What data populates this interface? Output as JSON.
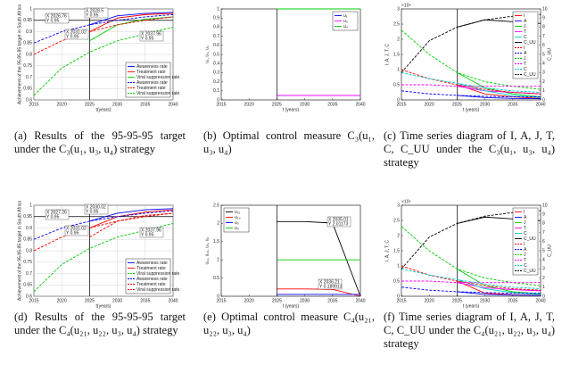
{
  "chart_data": [
    {
      "type": "line",
      "caption": "(a) Results of the 95-95-95 target under the C₃(u₁, u₃, u₄) strategy",
      "xlabel": "t(years)",
      "ylabel": "Achievement of the 95-95-95 target in South Africa",
      "x": [
        2015,
        2020,
        2025,
        2030,
        2035,
        2040
      ],
      "xlim": [
        2015,
        2040
      ],
      "xticks": [
        2015,
        2020,
        2025,
        2030,
        2035,
        2040
      ],
      "ylim": [
        0.6,
        1
      ],
      "yticks": [
        0.6,
        0.65,
        0.7,
        0.75,
        0.8,
        0.85,
        0.9,
        0.95,
        1
      ],
      "grid": true,
      "hline": 0.95,
      "vline": 2025,
      "legend": "lower right",
      "annotations": [
        [
          "X 2026.76",
          "Y 0.95"
        ],
        [
          "X 2028.5",
          "Y 0.95"
        ],
        [
          "X 2031.02",
          "Y 0.95"
        ],
        [
          "X 2037.96",
          "Y 0.95"
        ]
      ],
      "series": [
        {
          "name": "Awareness rate",
          "color": "#0000ff",
          "dashed": false,
          "values": [
            null,
            null,
            0.93,
            0.97,
            0.98,
            0.985
          ]
        },
        {
          "name": "Treatment rate",
          "color": "#ff0000",
          "dashed": false,
          "values": [
            null,
            null,
            0.9,
            0.96,
            0.975,
            0.98
          ]
        },
        {
          "name": "Viral suppression rate",
          "color": "#00cc00",
          "dashed": false,
          "values": [
            null,
            null,
            0.86,
            0.93,
            0.955,
            0.965
          ]
        },
        {
          "name": "Awareness rate",
          "color": "#0000ff",
          "dashed": true,
          "values": [
            0.85,
            0.9,
            0.93,
            0.95,
            0.965,
            0.975
          ]
        },
        {
          "name": "Treatment rate",
          "color": "#ff0000",
          "dashed": true,
          "values": [
            0.8,
            0.86,
            0.9,
            0.93,
            0.95,
            0.965
          ]
        },
        {
          "name": "Viral suppression rate",
          "color": "#00cc00",
          "dashed": true,
          "values": [
            0.62,
            0.74,
            0.81,
            0.86,
            0.89,
            0.92
          ]
        }
      ]
    },
    {
      "type": "line",
      "caption": "(b) Optimal control measure C₃(u₁, u₃, u₄)",
      "xlabel": "t (years)",
      "ylabel": "u₁, u₃, u₄",
      "x": [
        2015,
        2020,
        2025,
        2030,
        2035,
        2040
      ],
      "xlim": [
        2015,
        2040
      ],
      "xticks": [
        2015,
        2020,
        2025,
        2030,
        2035,
        2040
      ],
      "ylim": [
        0,
        1
      ],
      "yticks": [
        0,
        0.1,
        0.2,
        0.3,
        0.4,
        0.5,
        0.6,
        0.7,
        0.8,
        0.9,
        1
      ],
      "grid": false,
      "vline": 2025,
      "legend": "upper right",
      "annotations": [],
      "series": [
        {
          "name": "u₁",
          "color": "#0000ff",
          "dashed": false,
          "values": [
            null,
            null,
            0.05,
            0.05,
            0.05,
            0.05
          ]
        },
        {
          "name": "u₃",
          "color": "#ff00ff",
          "dashed": false,
          "values": [
            null,
            null,
            0.05,
            0.05,
            0.05,
            0.05
          ]
        },
        {
          "name": "u₄",
          "color": "#00cc00",
          "dashed": false,
          "values": [
            null,
            null,
            1,
            1,
            1,
            1
          ]
        }
      ]
    },
    {
      "type": "line",
      "caption": "(c) Time series diagram of I, A, J, T, C, C_UU under the C₃(u₁, u₃, u₄) strategy",
      "xlabel": "t (years)",
      "ylabel": "I, A, J, T, C",
      "y2label": "C_UU",
      "yscale_label": "×10⁶",
      "x": [
        2015,
        2020,
        2025,
        2030,
        2035,
        2040
      ],
      "xlim": [
        2015,
        2040
      ],
      "xticks": [
        2015,
        2020,
        2025,
        2030,
        2035,
        2040
      ],
      "ylim": [
        0,
        3
      ],
      "yticks": [
        0,
        0.5,
        1,
        1.5,
        2,
        2.5,
        3
      ],
      "y2lim": [
        0,
        10
      ],
      "y2ticks": [
        0,
        1,
        2,
        3,
        4,
        5,
        6,
        7,
        8,
        9,
        10
      ],
      "grid": false,
      "vline": 2025,
      "legend": "upper right",
      "annotations": [],
      "series": [
        {
          "name": "I",
          "color": "#ff0000",
          "dashed": false,
          "values": [
            null,
            null,
            0.5,
            0.2,
            0.1,
            0.05
          ]
        },
        {
          "name": "A",
          "color": "#0000ff",
          "dashed": false,
          "values": [
            null,
            null,
            0.15,
            0.08,
            0.05,
            0.04
          ]
        },
        {
          "name": "J",
          "color": "#00cc00",
          "dashed": false,
          "values": [
            null,
            null,
            0.9,
            0.4,
            0.2,
            0.1
          ]
        },
        {
          "name": "T",
          "color": "#ff00ff",
          "dashed": false,
          "values": [
            null,
            null,
            0.45,
            0.3,
            0.25,
            0.2
          ]
        },
        {
          "name": "C",
          "color": "#00cccc",
          "dashed": false,
          "values": [
            null,
            null,
            0.55,
            0.3,
            0.15,
            0.08
          ]
        },
        {
          "name": "C_UU",
          "color": "#000000",
          "dashed": false,
          "axis": "y2",
          "values": [
            null,
            null,
            8,
            8.8,
            8.6,
            8.4
          ]
        },
        {
          "name": "I",
          "color": "#ff0000",
          "dashed": true,
          "values": [
            1,
            0.7,
            0.5,
            0.35,
            0.25,
            0.2
          ]
        },
        {
          "name": "A",
          "color": "#0000ff",
          "dashed": true,
          "values": [
            0.3,
            0.2,
            0.15,
            0.12,
            0.1,
            0.1
          ]
        },
        {
          "name": "J",
          "color": "#00cc00",
          "dashed": true,
          "values": [
            2.3,
            1.5,
            0.9,
            0.6,
            0.45,
            0.35
          ]
        },
        {
          "name": "T",
          "color": "#ff00ff",
          "dashed": true,
          "values": [
            0.5,
            0.5,
            0.45,
            0.45,
            0.45,
            0.45
          ]
        },
        {
          "name": "C",
          "color": "#00cccc",
          "dashed": true,
          "values": [
            0.9,
            0.7,
            0.55,
            0.4,
            0.3,
            0.25
          ]
        },
        {
          "name": "C_UU",
          "color": "#000000",
          "dashed": true,
          "axis": "y2",
          "values": [
            3,
            6.5,
            8,
            8.8,
            9.2,
            9.4
          ]
        }
      ]
    },
    {
      "type": "line",
      "caption": "(d) Results of the 95-95-95 target under the C₄(u₂₁, u₂₂, u₃, u₄) strategy",
      "xlabel": "t(years)",
      "ylabel": "Achievement of the 95-95-95 target in South Africa",
      "x": [
        2015,
        2020,
        2025,
        2030,
        2035,
        2040
      ],
      "xlim": [
        2015,
        2040
      ],
      "xticks": [
        2015,
        2020,
        2025,
        2030,
        2035,
        2040
      ],
      "ylim": [
        0.6,
        1
      ],
      "yticks": [
        0.6,
        0.65,
        0.7,
        0.75,
        0.8,
        0.85,
        0.9,
        0.95,
        1
      ],
      "grid": true,
      "hline": 0.95,
      "vline": 2025,
      "legend": "lower right",
      "annotations": [
        [
          "X 2027.26",
          "Y 0.95"
        ],
        [
          "X 2030.02",
          "Y 0.95"
        ],
        [
          "X 2031.02",
          "Y 0.95"
        ],
        [
          "X 2037.96",
          "Y 0.95"
        ]
      ],
      "series": [
        {
          "name": "Awareness rate",
          "color": "#0000ff",
          "dashed": false,
          "values": [
            null,
            null,
            0.93,
            0.965,
            0.98,
            0.985
          ]
        },
        {
          "name": "Treatment rate",
          "color": "#ff0000",
          "dashed": false,
          "values": [
            null,
            null,
            0.9,
            0.95,
            0.97,
            0.98
          ]
        },
        {
          "name": "Viral suppression rate",
          "color": "#00cc00",
          "dashed": true,
          "values": [
            0.62,
            0.74,
            0.81,
            0.86,
            0.89,
            0.92
          ]
        },
        {
          "name": "Awareness rate",
          "color": "#0000ff",
          "dashed": true,
          "values": [
            0.85,
            0.9,
            0.93,
            0.95,
            0.965,
            0.975
          ]
        },
        {
          "name": "Treatment rate",
          "color": "#ff0000",
          "dashed": true,
          "values": [
            0.8,
            0.86,
            0.9,
            0.93,
            0.95,
            0.965
          ]
        },
        {
          "name": "Viral suppression rate",
          "color": "#ff0000",
          "dashed": true,
          "values": [
            null,
            null,
            0.86,
            0.93,
            0.955,
            0.965
          ]
        }
      ]
    },
    {
      "type": "line",
      "caption": "(e) Optimal control measure C₄(u₂₁, u₂₂, u₃, u₄)",
      "xlabel": "t (years)",
      "ylabel": "u₂₁, u₂₂, u₃, u₄",
      "x": [
        2015,
        2020,
        2025,
        2030,
        2035,
        2040
      ],
      "xlim": [
        2015,
        2040
      ],
      "xticks": [
        2015,
        2020,
        2025,
        2030,
        2035,
        2040
      ],
      "ylim": [
        0,
        2.5
      ],
      "yticks": [
        0,
        0.5,
        1,
        1.5,
        2,
        2.5
      ],
      "grid": false,
      "vline": 2025,
      "legend": "upper left",
      "annotations": [
        [
          "X 2035.01",
          "Y 2.01173"
        ],
        [
          "X 2036.21",
          "Y 0.189913"
        ]
      ],
      "series": [
        {
          "name": "u₂₁",
          "color": "#000000",
          "dashed": false,
          "values": [
            null,
            null,
            2.05,
            2.05,
            2.01,
            0
          ]
        },
        {
          "name": "u₂₂",
          "color": "#ff0000",
          "dashed": false,
          "values": [
            null,
            null,
            0.2,
            0.2,
            0.19,
            0
          ]
        },
        {
          "name": "u₃",
          "color": "#0000ff",
          "dashed": false,
          "values": [
            null,
            null,
            0.05,
            0.05,
            0.05,
            0.05
          ]
        },
        {
          "name": "u₄",
          "color": "#00cc00",
          "dashed": false,
          "values": [
            null,
            null,
            1,
            1,
            1,
            1
          ]
        }
      ]
    },
    {
      "type": "line",
      "caption": "(f) Time series diagram of I, A, J, T, C, C_UU under the C₄(u₂₁, u₂₂, u₃, u₄) strategy",
      "xlabel": "t (years)",
      "ylabel": "I, A, J, T, C",
      "y2label": "C_UU",
      "yscale_label": "×10⁶",
      "x": [
        2015,
        2020,
        2025,
        2030,
        2035,
        2040
      ],
      "xlim": [
        2015,
        2040
      ],
      "xticks": [
        2015,
        2020,
        2025,
        2030,
        2035,
        2040
      ],
      "ylim": [
        0,
        3
      ],
      "yticks": [
        0,
        0.5,
        1,
        1.5,
        2,
        2.5,
        3
      ],
      "y2lim": [
        0,
        10
      ],
      "y2ticks": [
        0,
        1,
        2,
        3,
        4,
        5,
        6,
        7,
        8,
        9,
        10
      ],
      "grid": false,
      "vline": 2025,
      "legend": "upper right",
      "annotations": [],
      "series": [
        {
          "name": "I",
          "color": "#ff0000",
          "dashed": false,
          "values": [
            null,
            null,
            0.5,
            0.1,
            0.05,
            0.03
          ]
        },
        {
          "name": "A",
          "color": "#0000ff",
          "dashed": false,
          "values": [
            null,
            null,
            0.15,
            0.06,
            0.04,
            0.03
          ]
        },
        {
          "name": "J",
          "color": "#00cc00",
          "dashed": false,
          "values": [
            null,
            null,
            0.9,
            0.35,
            0.15,
            0.08
          ]
        },
        {
          "name": "T",
          "color": "#ff00ff",
          "dashed": false,
          "values": [
            null,
            null,
            0.45,
            0.28,
            0.22,
            0.18
          ]
        },
        {
          "name": "C",
          "color": "#00cccc",
          "dashed": false,
          "values": [
            null,
            null,
            0.55,
            0.25,
            0.12,
            0.06
          ]
        },
        {
          "name": "C_UU",
          "color": "#000000",
          "dashed": false,
          "axis": "y2",
          "values": [
            null,
            null,
            8,
            8.7,
            8.5,
            8.3
          ]
        },
        {
          "name": "I",
          "color": "#ff0000",
          "dashed": true,
          "values": [
            1,
            0.7,
            0.5,
            0.35,
            0.25,
            0.2
          ]
        },
        {
          "name": "A",
          "color": "#0000ff",
          "dashed": true,
          "values": [
            0.3,
            0.2,
            0.15,
            0.12,
            0.1,
            0.1
          ]
        },
        {
          "name": "J",
          "color": "#00cc00",
          "dashed": true,
          "values": [
            2.3,
            1.5,
            0.9,
            0.6,
            0.45,
            0.35
          ]
        },
        {
          "name": "T",
          "color": "#ff00ff",
          "dashed": true,
          "values": [
            0.5,
            0.5,
            0.45,
            0.45,
            0.45,
            0.45
          ]
        },
        {
          "name": "C",
          "color": "#00cccc",
          "dashed": true,
          "values": [
            0.9,
            0.7,
            0.55,
            0.4,
            0.3,
            0.25
          ]
        },
        {
          "name": "C_UU",
          "color": "#000000",
          "dashed": true,
          "axis": "y2",
          "values": [
            3,
            6.5,
            8,
            8.8,
            9.2,
            9.4
          ]
        }
      ]
    }
  ]
}
